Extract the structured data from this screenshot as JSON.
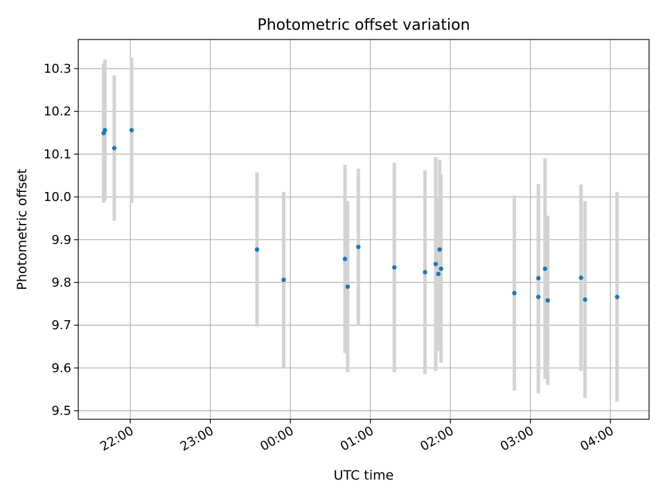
{
  "chart_data": {
    "type": "scatter",
    "title": "Photometric offset variation",
    "xlabel": "UTC time",
    "ylabel": "Photometric offset",
    "grid": true,
    "xlim": [
      "21:21",
      "04:29"
    ],
    "ylim": [
      9.48,
      10.368
    ],
    "x_ticks": [
      "22:00",
      "23:00",
      "00:00",
      "01:00",
      "02:00",
      "03:00",
      "04:00"
    ],
    "y_ticks": [
      "9.5",
      "9.6",
      "9.7",
      "9.8",
      "9.9",
      "10.0",
      "10.1",
      "10.2",
      "10.3"
    ],
    "colors": {
      "points": "#1f77b4",
      "error_bars": "#d3d3d3",
      "grid": "#b0b0b0"
    },
    "points": [
      {
        "time": "21:40",
        "y": 10.149,
        "err": 0.163
      },
      {
        "time": "21:41",
        "y": 10.156,
        "err": 0.165
      },
      {
        "time": "21:48",
        "y": 10.114,
        "err": 0.17
      },
      {
        "time": "22:01",
        "y": 10.156,
        "err": 0.17
      },
      {
        "time": "23:35",
        "y": 9.877,
        "err": 0.18
      },
      {
        "time": "23:55",
        "y": 9.806,
        "err": 0.205
      },
      {
        "time": "00:41",
        "y": 9.855,
        "err": 0.22
      },
      {
        "time": "00:43",
        "y": 9.79,
        "err": 0.2
      },
      {
        "time": "00:51",
        "y": 9.883,
        "err": 0.183
      },
      {
        "time": "01:18",
        "y": 9.835,
        "err": 0.245
      },
      {
        "time": "01:41",
        "y": 9.824,
        "err": 0.238
      },
      {
        "time": "01:49",
        "y": 9.843,
        "err": 0.25
      },
      {
        "time": "01:51",
        "y": 9.82,
        "err": 0.18
      },
      {
        "time": "01:52",
        "y": 9.877,
        "err": 0.21
      },
      {
        "time": "01:53",
        "y": 9.832,
        "err": 0.22
      },
      {
        "time": "02:48",
        "y": 9.775,
        "err": 0.228
      },
      {
        "time": "03:06",
        "y": 9.81,
        "err": 0.22
      },
      {
        "time": "03:06",
        "y": 9.766,
        "err": 0.225
      },
      {
        "time": "03:11",
        "y": 9.832,
        "err": 0.258
      },
      {
        "time": "03:13",
        "y": 9.758,
        "err": 0.198
      },
      {
        "time": "03:38",
        "y": 9.811,
        "err": 0.218
      },
      {
        "time": "03:41",
        "y": 9.76,
        "err": 0.23
      },
      {
        "time": "04:05",
        "y": 9.766,
        "err": 0.245
      }
    ]
  }
}
